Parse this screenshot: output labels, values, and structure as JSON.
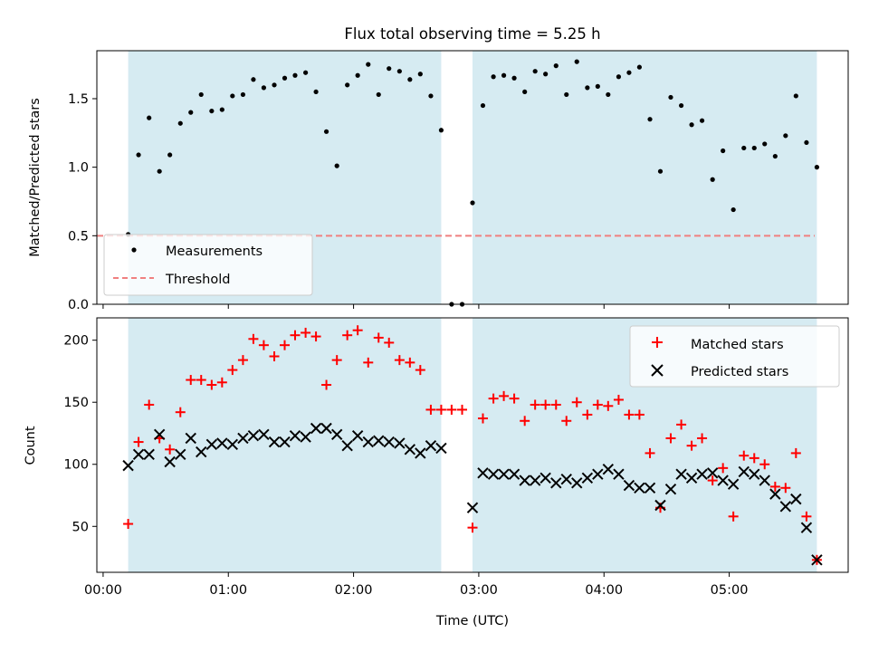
{
  "colors": {
    "band": "#add8e6",
    "measurement": "#000000",
    "threshold": "#f08080",
    "matched": "#ff0000",
    "predicted": "#000000"
  },
  "chart_data": [
    {
      "type": "scatter",
      "title": "Flux total observing time = 5.25 h",
      "xlabel": "",
      "ylabel": "Matched/Predicted stars",
      "xlim": [
        -0.05,
        5.95
      ],
      "ylim": [
        0.0,
        1.85
      ],
      "yticks": [
        0.0,
        0.5,
        1.0,
        1.5
      ],
      "ytick_labels": [
        "0.0",
        "0.5",
        "1.0",
        "1.5"
      ],
      "legend": {
        "position": "lower-left",
        "entries": [
          "Measurements",
          "Threshold"
        ]
      },
      "threshold": 0.5,
      "observing_windows": [
        [
          0.2,
          2.7
        ],
        [
          2.95,
          5.7
        ]
      ],
      "series": [
        {
          "name": "Measurements",
          "x": [
            0.2,
            0.283,
            0.367,
            0.45,
            0.533,
            0.617,
            0.7,
            0.783,
            0.867,
            0.95,
            1.033,
            1.117,
            1.2,
            1.283,
            1.367,
            1.45,
            1.533,
            1.617,
            1.7,
            1.783,
            1.867,
            1.95,
            2.033,
            2.117,
            2.2,
            2.283,
            2.367,
            2.45,
            2.533,
            2.617,
            2.7,
            2.783,
            2.867,
            2.95,
            3.033,
            3.117,
            3.2,
            3.283,
            3.367,
            3.45,
            3.533,
            3.617,
            3.7,
            3.783,
            3.867,
            3.95,
            4.033,
            4.117,
            4.2,
            4.283,
            4.367,
            4.45,
            4.533,
            4.617,
            4.7,
            4.783,
            4.867,
            4.95,
            5.033,
            5.117,
            5.2,
            5.283,
            5.367,
            5.45,
            5.533,
            5.617,
            5.7
          ],
          "values": [
            0.51,
            1.09,
            1.36,
            0.97,
            1.09,
            1.32,
            1.4,
            1.53,
            1.41,
            1.42,
            1.52,
            1.53,
            1.64,
            1.58,
            1.6,
            1.65,
            1.67,
            1.69,
            1.55,
            1.26,
            1.01,
            1.6,
            1.67,
            1.75,
            1.53,
            1.72,
            1.7,
            1.64,
            1.68,
            1.52,
            1.27,
            0.0,
            0.0,
            0.74,
            1.45,
            1.66,
            1.67,
            1.65,
            1.55,
            1.7,
            1.68,
            1.74,
            1.53,
            1.77,
            1.58,
            1.59,
            1.53,
            1.66,
            1.69,
            1.73,
            1.35,
            0.97,
            1.51,
            1.45,
            1.31,
            1.34,
            0.91,
            1.12,
            0.69,
            1.14,
            1.14,
            1.17,
            1.08,
            1.23,
            1.52,
            1.18,
            1.0
          ]
        }
      ]
    },
    {
      "type": "scatter",
      "title": "",
      "xlabel": "Time (UTC)",
      "ylabel": "Count",
      "xlim": [
        -0.05,
        5.95
      ],
      "ylim": [
        13,
        218
      ],
      "yticks": [
        50,
        100,
        150,
        200
      ],
      "ytick_labels": [
        "50",
        "100",
        "150",
        "200"
      ],
      "xticks": [
        0,
        1,
        2,
        3,
        4,
        5
      ],
      "xtick_labels": [
        "00:00",
        "01:00",
        "02:00",
        "03:00",
        "04:00",
        "05:00"
      ],
      "legend": {
        "position": "top-right",
        "entries": [
          "Matched stars",
          "Predicted stars"
        ]
      },
      "observing_windows": [
        [
          0.2,
          2.7
        ],
        [
          2.95,
          5.7
        ]
      ],
      "series": [
        {
          "name": "Matched stars",
          "x": [
            0.2,
            0.283,
            0.367,
            0.45,
            0.533,
            0.617,
            0.7,
            0.783,
            0.867,
            0.95,
            1.033,
            1.117,
            1.2,
            1.283,
            1.367,
            1.45,
            1.533,
            1.617,
            1.7,
            1.783,
            1.867,
            1.95,
            2.033,
            2.117,
            2.2,
            2.283,
            2.367,
            2.45,
            2.533,
            2.617,
            2.7,
            2.783,
            2.867,
            2.95,
            3.033,
            3.117,
            3.2,
            3.283,
            3.367,
            3.45,
            3.533,
            3.617,
            3.7,
            3.783,
            3.867,
            3.95,
            4.033,
            4.117,
            4.2,
            4.283,
            4.367,
            4.45,
            4.533,
            4.617,
            4.7,
            4.783,
            4.867,
            4.95,
            5.033,
            5.117,
            5.2,
            5.283,
            5.367,
            5.45,
            5.533,
            5.617,
            5.7
          ],
          "values": [
            52,
            118,
            148,
            121,
            112,
            142,
            168,
            168,
            164,
            166,
            176,
            184,
            201,
            196,
            187,
            196,
            204,
            206,
            203,
            164,
            184,
            204,
            208,
            182,
            202,
            198,
            184,
            182,
            176,
            144,
            144,
            144,
            144,
            49,
            137,
            153,
            155,
            153,
            135,
            148,
            148,
            148,
            135,
            150,
            140,
            148,
            147,
            152,
            140,
            140,
            109,
            65,
            121,
            132,
            115,
            121,
            87,
            97,
            58,
            107,
            105,
            100,
            82,
            81,
            109,
            58,
            23
          ]
        },
        {
          "name": "Predicted stars",
          "x": [
            0.2,
            0.283,
            0.367,
            0.45,
            0.533,
            0.617,
            0.7,
            0.783,
            0.867,
            0.95,
            1.033,
            1.117,
            1.2,
            1.283,
            1.367,
            1.45,
            1.533,
            1.617,
            1.7,
            1.783,
            1.867,
            1.95,
            2.033,
            2.117,
            2.2,
            2.283,
            2.367,
            2.45,
            2.533,
            2.617,
            2.7,
            2.95,
            3.033,
            3.117,
            3.2,
            3.283,
            3.367,
            3.45,
            3.533,
            3.617,
            3.7,
            3.783,
            3.867,
            3.95,
            4.033,
            4.117,
            4.2,
            4.283,
            4.367,
            4.45,
            4.533,
            4.617,
            4.7,
            4.783,
            4.867,
            4.95,
            5.033,
            5.117,
            5.2,
            5.283,
            5.367,
            5.45,
            5.533,
            5.617,
            5.7
          ],
          "values": [
            99,
            108,
            108,
            124,
            102,
            108,
            121,
            110,
            116,
            117,
            116,
            121,
            123,
            124,
            118,
            118,
            123,
            122,
            129,
            129,
            124,
            115,
            123,
            118,
            119,
            118,
            117,
            112,
            109,
            115,
            113,
            65,
            93,
            92,
            92,
            92,
            87,
            87,
            89,
            85,
            88,
            85,
            89,
            92,
            96,
            92,
            83,
            81,
            81,
            67,
            80,
            92,
            89,
            92,
            93,
            87,
            84,
            94,
            92,
            87,
            76,
            66,
            72,
            49,
            23
          ]
        }
      ]
    }
  ]
}
